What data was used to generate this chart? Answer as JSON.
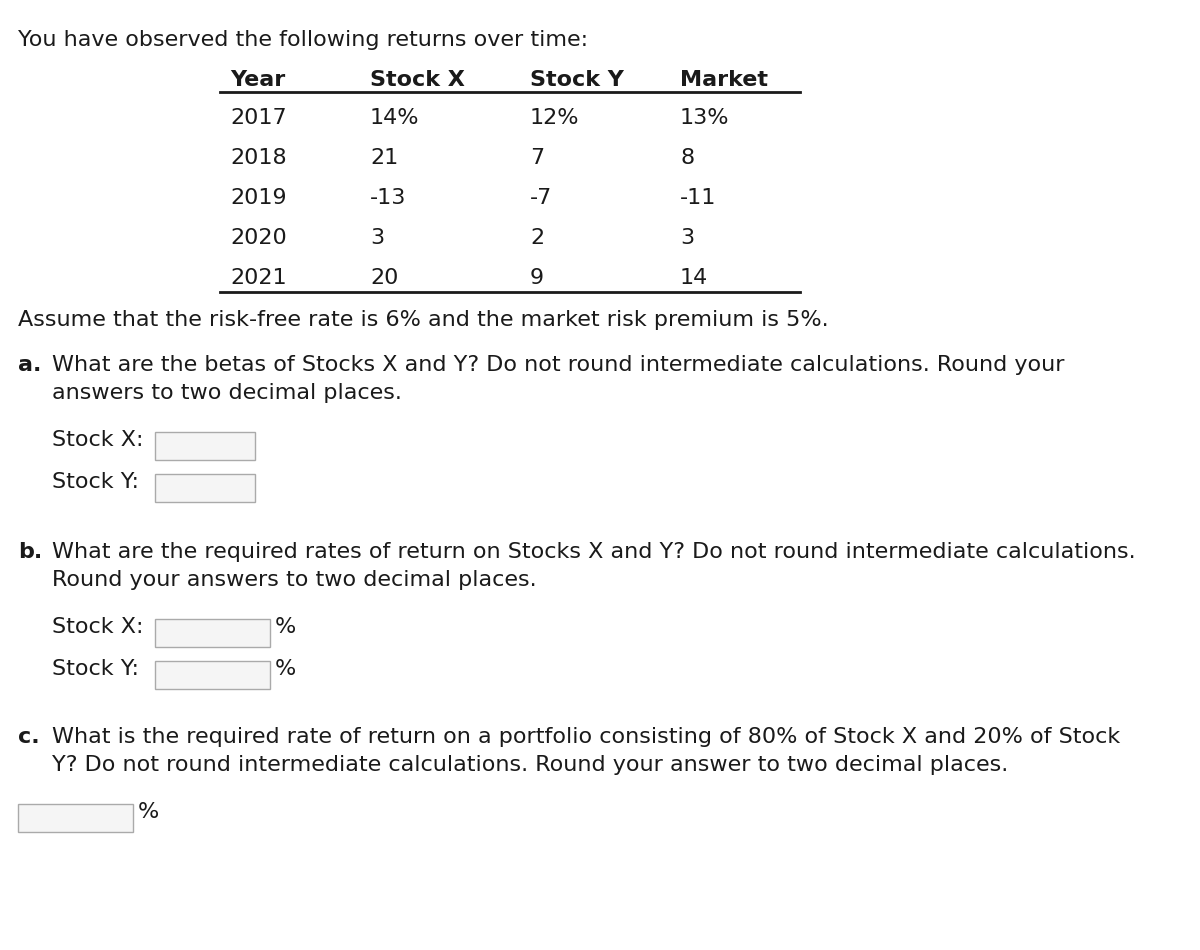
{
  "intro_text": "You have observed the following returns over time:",
  "table_headers": [
    "Year",
    "Stock X",
    "Stock Y",
    "Market"
  ],
  "table_rows": [
    [
      "2017",
      "14%",
      "12%",
      "13%"
    ],
    [
      "2018",
      "21",
      "7",
      "8"
    ],
    [
      "2019",
      "-13",
      "-7",
      "-11"
    ],
    [
      "2020",
      "3",
      "2",
      "3"
    ],
    [
      "2021",
      "20",
      "9",
      "14"
    ]
  ],
  "assumption_text": "Assume that the risk-free rate is 6% and the market risk premium is 5%.",
  "part_a_label": "a.",
  "part_a_line1": "What are the betas of Stocks X and Y? Do not round intermediate calculations. Round your",
  "part_a_line2": "answers to two decimal places.",
  "part_a_stock_x": "Stock X:",
  "part_a_stock_y": "Stock Y:",
  "part_b_label": "b.",
  "part_b_line1": "What are the required rates of return on Stocks X and Y? Do not round intermediate calculations.",
  "part_b_line2": "Round your answers to two decimal places.",
  "part_b_stock_x": "Stock X:",
  "part_b_stock_y": "Stock Y:",
  "part_c_label": "c.",
  "part_c_line1": "What is the required rate of return on a portfolio consisting of 80% of Stock X and 20% of Stock",
  "part_c_line2": "Y? Do not round intermediate calculations. Round your answer to two decimal places.",
  "pct": "%",
  "bg_color": "#ffffff",
  "text_color": "#1a1a1a",
  "box_facecolor": "#f5f5f5",
  "box_edgecolor": "#aaaaaa",
  "line_color": "#1a1a1a"
}
